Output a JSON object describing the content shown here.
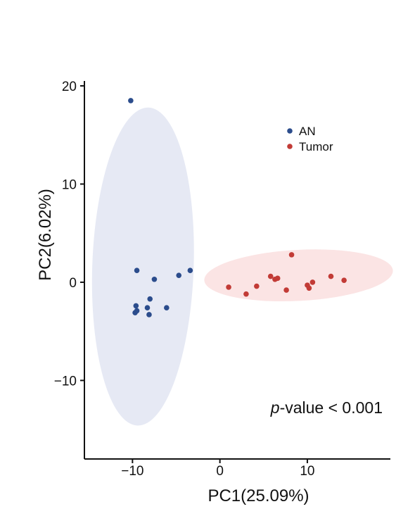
{
  "chart_data": {
    "type": "scatter",
    "title": "",
    "xlabel": "PC1(25.09%)",
    "ylabel": "PC2(6.02%)",
    "xlim": [
      -15.5,
      19.5
    ],
    "ylim": [
      -18,
      20.5
    ],
    "xticks": [
      -10,
      0,
      10
    ],
    "xtick_labels": [
      "−10",
      "0",
      "10"
    ],
    "yticks": [
      20,
      10,
      0,
      -10
    ],
    "ytick_labels": [
      "20",
      "10",
      "0",
      "−10"
    ],
    "grid": false,
    "legend_position": "top-right",
    "annotation": {
      "italic": "p",
      "text": "-value < 0.001"
    },
    "series": [
      {
        "name": "AN",
        "color": "#2b4c8c",
        "ellipse": {
          "cx": -8.8,
          "cy": 1.6,
          "rx": 5.8,
          "ry": 16.2,
          "rotation_deg": 2,
          "fill": "#e6e9f4"
        },
        "points": [
          {
            "x": -10.2,
            "y": 18.5
          },
          {
            "x": -9.5,
            "y": 1.2
          },
          {
            "x": -7.5,
            "y": 0.3
          },
          {
            "x": -4.7,
            "y": 0.7
          },
          {
            "x": -3.4,
            "y": 1.2
          },
          {
            "x": -9.6,
            "y": -2.4
          },
          {
            "x": -9.7,
            "y": -3.1
          },
          {
            "x": -9.5,
            "y": -2.9
          },
          {
            "x": -8.0,
            "y": -1.7
          },
          {
            "x": -8.3,
            "y": -2.6
          },
          {
            "x": -8.1,
            "y": -3.3
          },
          {
            "x": -6.1,
            "y": -2.6
          }
        ]
      },
      {
        "name": "Tumor",
        "color": "#c23b36",
        "ellipse": {
          "cx": 9.0,
          "cy": 0.7,
          "rx": 10.8,
          "ry": 2.6,
          "rotation_deg": -3,
          "fill": "#fbe4e4"
        },
        "points": [
          {
            "x": 1.0,
            "y": -0.5
          },
          {
            "x": 3.0,
            "y": -1.2
          },
          {
            "x": 4.2,
            "y": -0.4
          },
          {
            "x": 5.8,
            "y": 0.6
          },
          {
            "x": 6.3,
            "y": 0.3
          },
          {
            "x": 6.6,
            "y": 0.4
          },
          {
            "x": 7.6,
            "y": -0.8
          },
          {
            "x": 8.2,
            "y": 2.8
          },
          {
            "x": 10.0,
            "y": -0.3
          },
          {
            "x": 10.2,
            "y": -0.6
          },
          {
            "x": 10.6,
            "y": 0.0
          },
          {
            "x": 12.7,
            "y": 0.6
          },
          {
            "x": 14.2,
            "y": 0.2
          }
        ]
      }
    ]
  }
}
